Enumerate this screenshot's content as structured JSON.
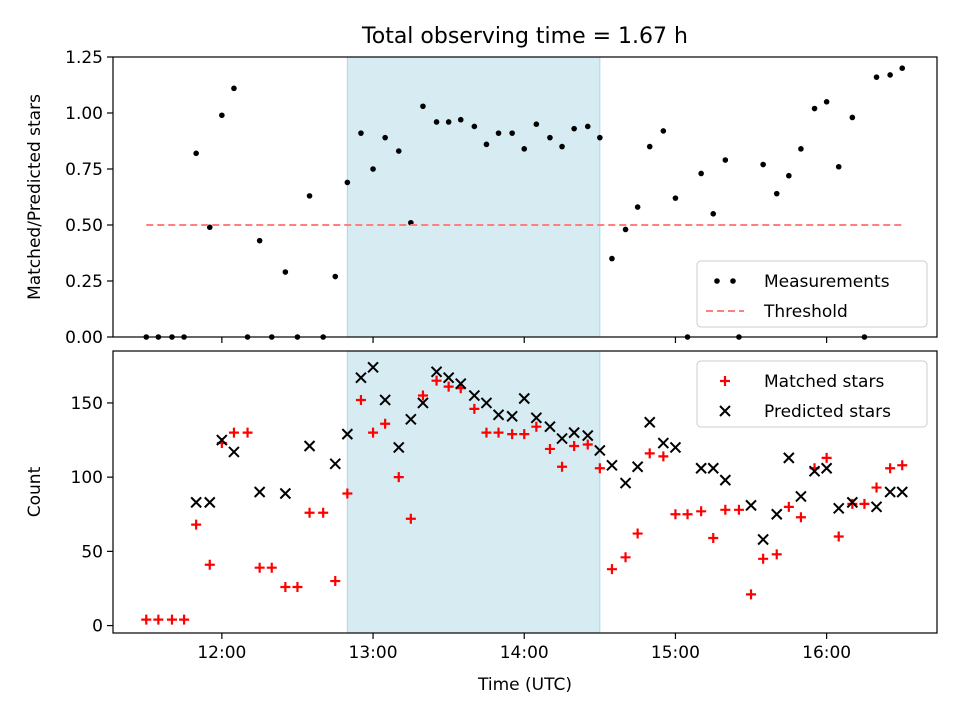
{
  "title": "Total observing time = 1.67 h",
  "colors": {
    "measurement": "#000000",
    "threshold": "#ff7f7f",
    "matched": "#ff0000",
    "predicted": "#000000",
    "window_fill": "#add8e6"
  },
  "chart_data": [
    {
      "type": "scatter",
      "ylabel": "Matched/Predicted stars",
      "xlim": [
        11.28,
        16.73
      ],
      "ylim": [
        0,
        1.25
      ],
      "x_ticks": [
        12,
        13,
        14,
        15,
        16
      ],
      "y_ticks": [
        0.0,
        0.25,
        0.5,
        0.75,
        1.0,
        1.25
      ],
      "y_tick_labels": [
        "0.00",
        "0.25",
        "0.50",
        "0.75",
        "1.00",
        "1.25"
      ],
      "observing_window": [
        12.83,
        14.5
      ],
      "legend_position": "lower-right",
      "series": [
        {
          "name": "Measurements",
          "marker": "dot",
          "points": [
            [
              11.5,
              0.0
            ],
            [
              11.58,
              0.0
            ],
            [
              11.67,
              0.0
            ],
            [
              11.75,
              0.0
            ],
            [
              11.83,
              0.82
            ],
            [
              11.92,
              0.49
            ],
            [
              12.0,
              0.99
            ],
            [
              12.08,
              1.11
            ],
            [
              12.17,
              0.0
            ],
            [
              12.25,
              0.43
            ],
            [
              12.33,
              0.0
            ],
            [
              12.42,
              0.29
            ],
            [
              12.5,
              0.0
            ],
            [
              12.58,
              0.63
            ],
            [
              12.67,
              0.0
            ],
            [
              12.75,
              0.27
            ],
            [
              12.83,
              0.69
            ],
            [
              12.92,
              0.91
            ],
            [
              13.0,
              0.75
            ],
            [
              13.08,
              0.89
            ],
            [
              13.17,
              0.83
            ],
            [
              13.25,
              0.51
            ],
            [
              13.33,
              1.03
            ],
            [
              13.42,
              0.96
            ],
            [
              13.5,
              0.96
            ],
            [
              13.58,
              0.97
            ],
            [
              13.67,
              0.94
            ],
            [
              13.75,
              0.86
            ],
            [
              13.83,
              0.91
            ],
            [
              13.92,
              0.91
            ],
            [
              14.0,
              0.84
            ],
            [
              14.08,
              0.95
            ],
            [
              14.17,
              0.89
            ],
            [
              14.25,
              0.85
            ],
            [
              14.33,
              0.93
            ],
            [
              14.42,
              0.94
            ],
            [
              14.5,
              0.89
            ],
            [
              14.58,
              0.35
            ],
            [
              14.67,
              0.48
            ],
            [
              14.75,
              0.58
            ],
            [
              14.83,
              0.85
            ],
            [
              14.92,
              0.92
            ],
            [
              15.0,
              0.62
            ],
            [
              15.08,
              0.0
            ],
            [
              15.17,
              0.73
            ],
            [
              15.25,
              0.55
            ],
            [
              15.33,
              0.79
            ],
            [
              15.42,
              0.0
            ],
            [
              15.58,
              0.77
            ],
            [
              15.67,
              0.64
            ],
            [
              15.75,
              0.72
            ],
            [
              15.83,
              0.84
            ],
            [
              15.92,
              1.02
            ],
            [
              16.0,
              1.05
            ],
            [
              16.08,
              0.76
            ],
            [
              16.17,
              0.98
            ],
            [
              16.25,
              0.0
            ],
            [
              16.33,
              1.16
            ],
            [
              16.42,
              1.17
            ],
            [
              16.5,
              1.2
            ]
          ]
        },
        {
          "name": "Threshold",
          "style": "dashed",
          "points": [
            [
              11.5,
              0.5
            ],
            [
              16.5,
              0.5
            ]
          ]
        }
      ]
    },
    {
      "type": "scatter",
      "xlabel": "Time (UTC)",
      "ylabel": "Count",
      "xlim": [
        11.28,
        16.73
      ],
      "ylim": [
        -5,
        185
      ],
      "x_ticks": [
        12,
        13,
        14,
        15,
        16
      ],
      "x_tick_labels": [
        "12:00",
        "13:00",
        "14:00",
        "15:00",
        "16:00"
      ],
      "y_ticks": [
        0,
        50,
        100,
        150
      ],
      "y_tick_labels": [
        "0",
        "50",
        "100",
        "150"
      ],
      "observing_window": [
        12.83,
        14.5
      ],
      "legend_position": "upper-right",
      "series": [
        {
          "name": "Matched stars",
          "marker": "plus",
          "points": [
            [
              11.5,
              4
            ],
            [
              11.58,
              4
            ],
            [
              11.67,
              4
            ],
            [
              11.75,
              4
            ],
            [
              11.83,
              68
            ],
            [
              11.92,
              41
            ],
            [
              12.0,
              123
            ],
            [
              12.08,
              130
            ],
            [
              12.17,
              130
            ],
            [
              12.25,
              39
            ],
            [
              12.33,
              39
            ],
            [
              12.42,
              26
            ],
            [
              12.5,
              26
            ],
            [
              12.58,
              76
            ],
            [
              12.67,
              76
            ],
            [
              12.75,
              30
            ],
            [
              12.83,
              89
            ],
            [
              12.92,
              152
            ],
            [
              13.0,
              130
            ],
            [
              13.08,
              136
            ],
            [
              13.17,
              100
            ],
            [
              13.25,
              72
            ],
            [
              13.33,
              155
            ],
            [
              13.42,
              165
            ],
            [
              13.5,
              161
            ],
            [
              13.58,
              160
            ],
            [
              13.67,
              146
            ],
            [
              13.75,
              130
            ],
            [
              13.83,
              130
            ],
            [
              13.92,
              129
            ],
            [
              14.0,
              129
            ],
            [
              14.08,
              134
            ],
            [
              14.17,
              119
            ],
            [
              14.25,
              107
            ],
            [
              14.33,
              121
            ],
            [
              14.42,
              122
            ],
            [
              14.5,
              106
            ],
            [
              14.58,
              38
            ],
            [
              14.67,
              46
            ],
            [
              14.75,
              62
            ],
            [
              14.83,
              116
            ],
            [
              14.92,
              114
            ],
            [
              15.0,
              75
            ],
            [
              15.08,
              75
            ],
            [
              15.17,
              77
            ],
            [
              15.25,
              59
            ],
            [
              15.33,
              78
            ],
            [
              15.42,
              78
            ],
            [
              15.5,
              21
            ],
            [
              15.58,
              45
            ],
            [
              15.67,
              48
            ],
            [
              15.75,
              80
            ],
            [
              15.83,
              73
            ],
            [
              15.92,
              106
            ],
            [
              16.0,
              113
            ],
            [
              16.08,
              60
            ],
            [
              16.17,
              82
            ],
            [
              16.25,
              82
            ],
            [
              16.33,
              93
            ],
            [
              16.42,
              106
            ],
            [
              16.5,
              108
            ]
          ]
        },
        {
          "name": "Predicted stars",
          "marker": "x",
          "points": [
            [
              11.83,
              83
            ],
            [
              11.92,
              83
            ],
            [
              12.0,
              125
            ],
            [
              12.08,
              117
            ],
            [
              12.25,
              90
            ],
            [
              12.42,
              89
            ],
            [
              12.58,
              121
            ],
            [
              12.75,
              109
            ],
            [
              12.83,
              129
            ],
            [
              12.92,
              167
            ],
            [
              13.0,
              174
            ],
            [
              13.08,
              152
            ],
            [
              13.17,
              120
            ],
            [
              13.25,
              139
            ],
            [
              13.33,
              150
            ],
            [
              13.42,
              171
            ],
            [
              13.5,
              167
            ],
            [
              13.58,
              163
            ],
            [
              13.67,
              155
            ],
            [
              13.75,
              150
            ],
            [
              13.83,
              142
            ],
            [
              13.92,
              141
            ],
            [
              14.0,
              153
            ],
            [
              14.08,
              140
            ],
            [
              14.17,
              134
            ],
            [
              14.25,
              126
            ],
            [
              14.33,
              130
            ],
            [
              14.42,
              128
            ],
            [
              14.5,
              118
            ],
            [
              14.58,
              108
            ],
            [
              14.67,
              96
            ],
            [
              14.75,
              107
            ],
            [
              14.83,
              137
            ],
            [
              14.92,
              123
            ],
            [
              15.0,
              120
            ],
            [
              15.17,
              106
            ],
            [
              15.25,
              106
            ],
            [
              15.33,
              98
            ],
            [
              15.5,
              81
            ],
            [
              15.58,
              58
            ],
            [
              15.67,
              75
            ],
            [
              15.75,
              113
            ],
            [
              15.83,
              87
            ],
            [
              15.92,
              104
            ],
            [
              16.0,
              106
            ],
            [
              16.08,
              79
            ],
            [
              16.17,
              83
            ],
            [
              16.33,
              80
            ],
            [
              16.42,
              90
            ],
            [
              16.5,
              90
            ]
          ]
        }
      ]
    }
  ]
}
